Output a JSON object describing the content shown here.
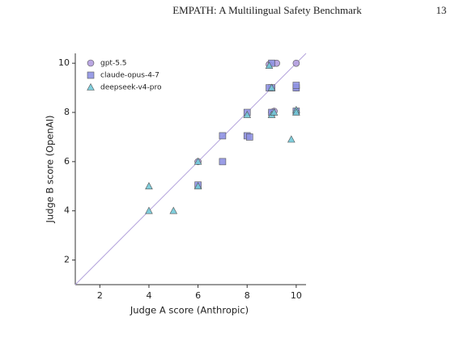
{
  "header": {
    "title": "EMPATH: A Multilingual Safety Benchmark",
    "page": 13
  },
  "chart_data": {
    "type": "scatter",
    "x_label": "Judge A score (Anthropic)",
    "y_label": "Judge B score (OpenAI)",
    "xlim": [
      1,
      10.4
    ],
    "ylim": [
      1,
      10.4
    ],
    "xticks": [
      2,
      4,
      6,
      8,
      10
    ],
    "yticks": [
      2,
      4,
      6,
      8,
      10
    ],
    "diagonal_color": "#b3a3dc",
    "legend": "upper left",
    "series": [
      {
        "name": "gpt-5.5",
        "color": "#b39ddf",
        "marker": "circle",
        "x": [
          10,
          9.2,
          8.9,
          6,
          9,
          9,
          10,
          9.1
        ],
        "values": [
          10,
          10,
          9.95,
          6,
          9,
          8,
          9,
          8.05
        ]
      },
      {
        "name": "claude-opus-4-7",
        "color": "#8f92e3",
        "marker": "square",
        "x": [
          9,
          9,
          10,
          10,
          8,
          8,
          8.1,
          7,
          7,
          6,
          9,
          8.9,
          10
        ],
        "values": [
          10,
          9,
          9,
          9.1,
          8,
          7.05,
          7,
          7.05,
          6,
          5.05,
          8,
          9,
          8.05
        ]
      },
      {
        "name": "deepseek-v4-pro",
        "color": "#72c9d8",
        "marker": "triangle",
        "x": [
          4,
          4,
          5,
          6,
          6,
          8,
          9,
          9.8,
          10,
          10,
          8.9,
          9,
          9.1
        ],
        "values": [
          5,
          4,
          4,
          5,
          6,
          7.9,
          7.9,
          6.9,
          8.1,
          8,
          9.9,
          9,
          8
        ]
      }
    ]
  }
}
